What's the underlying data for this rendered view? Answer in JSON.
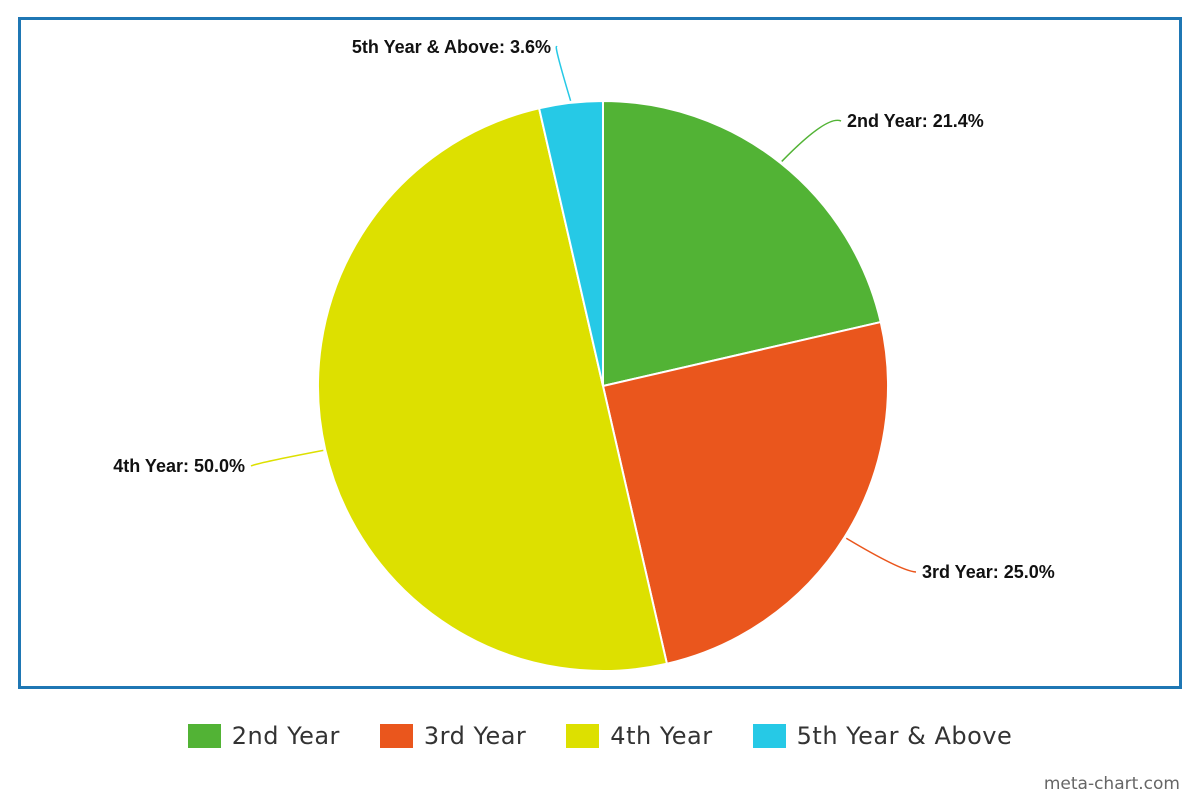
{
  "chart_data": {
    "type": "pie",
    "title": "",
    "slices": [
      {
        "name": "2nd Year",
        "value": 21.4,
        "label": "2nd Year: 21.4%",
        "color": "#52b335"
      },
      {
        "name": "3rd Year",
        "value": 25.0,
        "label": "3rd Year: 25.0%",
        "color": "#ea561d"
      },
      {
        "name": "4th Year",
        "value": 50.0,
        "label": "4th Year: 50.0%",
        "color": "#dde000"
      },
      {
        "name": "5th Year & Above",
        "value": 3.6,
        "label": "5th Year & Above: 3.6%",
        "color": "#26c9e6"
      }
    ],
    "legend_position": "bottom"
  },
  "credit": "meta-chart.com",
  "frame_color": "#1f77b4"
}
